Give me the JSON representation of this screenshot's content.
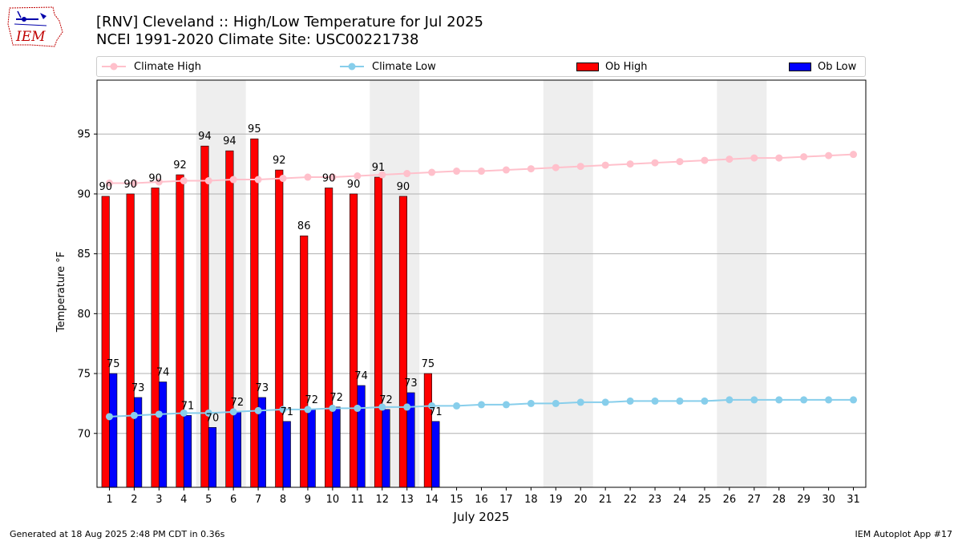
{
  "header": {
    "title_line1": "[RNV] Cleveland :: High/Low Temperature for Jul 2025",
    "title_line2": "NCEI 1991-2020 Climate Site: USC00221738",
    "logo_text": "IEM"
  },
  "footer": {
    "generated": "Generated at 18 Aug 2025 2:48 PM CDT in 0.36s",
    "app": "IEM Autoplot App #17"
  },
  "colors": {
    "climate_high": "#FFC0CB",
    "climate_low": "#87CEEB",
    "ob_high": "#FF0000",
    "ob_low": "#0000FF",
    "weekend_shade": "#EEEEEE",
    "grid": "#B0B0B0"
  },
  "chart_data": {
    "type": "bar",
    "xlabel": "July 2025",
    "ylabel": "Temperature °F",
    "xlim": [
      0.5,
      31.5
    ],
    "ylim": [
      65.5,
      99.5
    ],
    "yticks": [
      70,
      75,
      80,
      85,
      90,
      95
    ],
    "grid": "horizontal",
    "legend_position": "top",
    "legend": [
      "Climate High",
      "Climate Low",
      "Ob High",
      "Ob Low"
    ],
    "days": [
      1,
      2,
      3,
      4,
      5,
      6,
      7,
      8,
      9,
      10,
      11,
      12,
      13,
      14,
      15,
      16,
      17,
      18,
      19,
      20,
      21,
      22,
      23,
      24,
      25,
      26,
      27,
      28,
      29,
      30,
      31
    ],
    "shaded_days": [
      [
        5,
        6
      ],
      [
        12,
        13
      ],
      [
        19,
        20
      ],
      [
        26,
        27
      ]
    ],
    "series": [
      {
        "name": "Ob High",
        "kind": "bar",
        "values": [
          89.8,
          90,
          90.5,
          91.6,
          94,
          93.6,
          94.6,
          92,
          86.5,
          90.5,
          90,
          91.4,
          89.8,
          75
        ],
        "labels": [
          "90",
          "90",
          "90",
          "92",
          "94",
          "94",
          "95",
          "92",
          "86",
          "90",
          "90",
          "91",
          "90",
          "75"
        ]
      },
      {
        "name": "Ob Low",
        "kind": "bar",
        "values": [
          75,
          73,
          74.3,
          71.5,
          70.5,
          71.8,
          73,
          71,
          72,
          72.2,
          74,
          72,
          73.4,
          71
        ],
        "labels": [
          "75",
          "73",
          "74",
          "71",
          "70",
          "72",
          "73",
          "71",
          "72",
          "72",
          "74",
          "72",
          "73",
          "71"
        ]
      },
      {
        "name": "Climate High",
        "kind": "line",
        "values": [
          90.9,
          90.9,
          91.0,
          91.1,
          91.1,
          91.2,
          91.2,
          91.3,
          91.4,
          91.4,
          91.5,
          91.6,
          91.7,
          91.8,
          91.9,
          91.9,
          92.0,
          92.1,
          92.2,
          92.3,
          92.4,
          92.5,
          92.6,
          92.7,
          92.8,
          92.9,
          93.0,
          93.0,
          93.1,
          93.2,
          93.3
        ]
      },
      {
        "name": "Climate Low",
        "kind": "line",
        "values": [
          71.4,
          71.5,
          71.6,
          71.7,
          71.7,
          71.8,
          71.9,
          72.0,
          72.0,
          72.1,
          72.1,
          72.2,
          72.2,
          72.3,
          72.3,
          72.4,
          72.4,
          72.5,
          72.5,
          72.6,
          72.6,
          72.7,
          72.7,
          72.7,
          72.7,
          72.8,
          72.8,
          72.8,
          72.8,
          72.8,
          72.8
        ]
      }
    ]
  }
}
